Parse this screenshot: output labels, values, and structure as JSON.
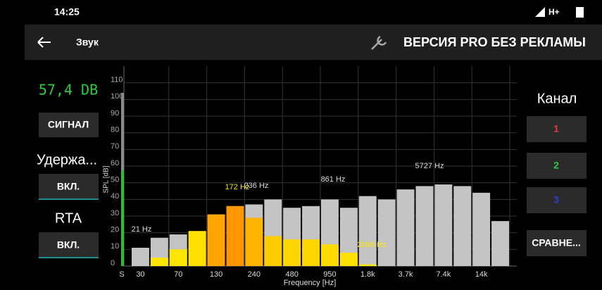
{
  "status_bar": {
    "time": "14:25",
    "network": "H+"
  },
  "toolbar": {
    "title": "Звук",
    "promo": "ВЕРСИЯ PRO БЕЗ РЕКЛАМЫ"
  },
  "left_panel": {
    "level_label": "57,4 DB",
    "signal_button": "СИГНАЛ",
    "hold_label": "Удержа...",
    "hold_button": "ВКЛ.",
    "rta_label": "RTA",
    "rta_button": "ВКЛ."
  },
  "right_panel": {
    "channel_label": "Канал",
    "channels": [
      {
        "label": "1",
        "color": "#e53935"
      },
      {
        "label": "2",
        "color": "#2ecc40"
      },
      {
        "label": "3",
        "color": "#2a3fd8"
      }
    ],
    "compare_button": "СРАВНЕ..."
  },
  "chart_data": {
    "type": "bar",
    "xlabel": "Frequency [Hz]",
    "ylabel": "SPL [dB]",
    "side_label": "S",
    "categories": [
      "30",
      null,
      "70",
      null,
      "130",
      null,
      "240",
      null,
      "480",
      null,
      "950",
      null,
      "1.8k",
      null,
      "3.7k",
      null,
      "7.4k",
      null,
      "14k",
      null
    ],
    "series": [
      {
        "color": "#c4c4c4",
        "values": [
          11,
          17,
          19,
          21,
          31,
          36,
          37,
          40,
          35,
          36,
          40,
          35,
          42,
          40,
          46,
          48,
          49,
          48,
          44,
          27
        ]
      },
      {
        "colors": [
          "#ffe600",
          "#ffe600",
          "#ffe600",
          "#ffe000",
          "#ffa500",
          "#ff9800",
          "#ffb400",
          "#ffcc00",
          "#ffd600",
          "#ffd600",
          "#ffdc00",
          "#ffe000",
          "#ffe600",
          "#ffe600",
          "#ffe600",
          "#ffe600",
          "#ffe600",
          "#ffe600",
          "#ffe600",
          "#ffe600"
        ],
        "values": [
          0,
          5,
          10,
          21,
          31,
          36,
          29,
          18,
          16,
          16,
          13,
          8,
          1,
          0,
          0,
          0,
          0,
          0,
          0,
          0
        ]
      }
    ],
    "level": 57.4,
    "level_peak": 104,
    "level_color": "#2ebd2e",
    "level_peak_color": "#8a8a8a",
    "ylim": [
      0,
      120
    ],
    "yticks": [
      0,
      10,
      20,
      30,
      40,
      50,
      60,
      70,
      80,
      90,
      100,
      110
    ],
    "grid": true,
    "annotations": [
      {
        "text": "21 Hz",
        "color": "#dddddd"
      },
      {
        "text": "172 Hz",
        "color": "#ffe600"
      },
      {
        "text": "236 Hz",
        "color": "#dddddd"
      },
      {
        "text": "861 Hz",
        "color": "#dddddd"
      },
      {
        "text": "5727 Hz",
        "color": "#dddddd"
      },
      {
        "text": "2088 Hz",
        "color": "#ffe600"
      }
    ]
  }
}
